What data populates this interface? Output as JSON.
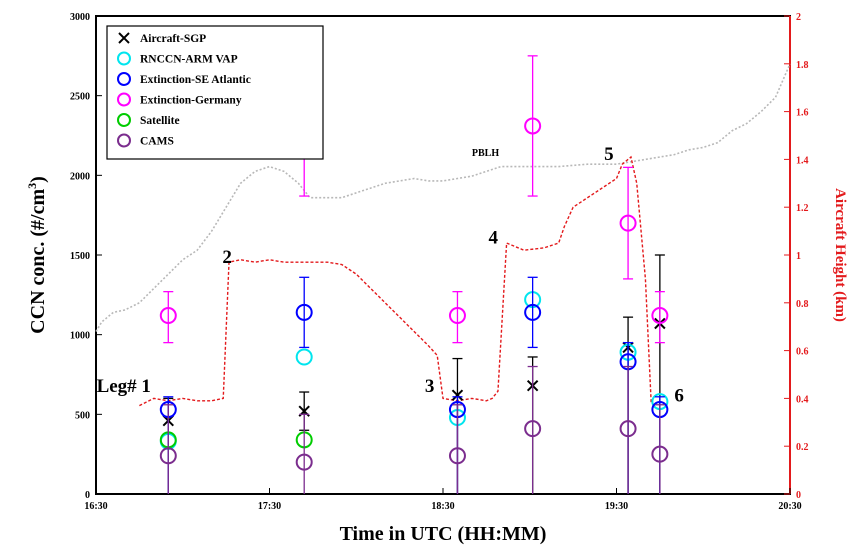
{
  "chart_data": {
    "type": "scatter",
    "xlabel": "Time in UTC (HH:MM)",
    "ylabel": "CCN conc. (#/cm",
    "ylabel_sup": "3",
    "ylabel_close": ")",
    "y2label": "Aircraft Height (km)",
    "xlim_minutes": [
      990,
      1230
    ],
    "ylim": [
      0,
      3000
    ],
    "y2lim": [
      0,
      2
    ],
    "x_ticks": [
      {
        "t": 990,
        "label": "16:30"
      },
      {
        "t": 1050,
        "label": "17:30"
      },
      {
        "t": 1110,
        "label": "18:30"
      },
      {
        "t": 1170,
        "label": "19:30"
      },
      {
        "t": 1230,
        "label": "20:30"
      }
    ],
    "y_ticks": [
      0,
      500,
      1000,
      1500,
      2000,
      2500,
      3000
    ],
    "y2_ticks": [
      "0",
      "0.2",
      "0.4",
      "0.6",
      "0.8",
      "1",
      "1.2",
      "1.4",
      "1.6",
      "1.8",
      "2"
    ],
    "legend": {
      "position": "top-left",
      "entries": [
        {
          "name": "Aircraft-SGP",
          "marker": "x",
          "color": "#000000"
        },
        {
          "name": "RNCCN-ARM VAP",
          "marker": "o",
          "color": "#00e5ee"
        },
        {
          "name": "Extinction-SE Atlantic",
          "marker": "o",
          "color": "#0000ff"
        },
        {
          "name": "Extinction-Germany",
          "marker": "o",
          "color": "#ff00ff"
        },
        {
          "name": "Satellite",
          "marker": "o",
          "color": "#00cc00"
        },
        {
          "name": "CAMS",
          "marker": "o",
          "color": "#7b2d8e"
        }
      ]
    },
    "series": [
      {
        "name": "Aircraft-SGP",
        "marker": "x",
        "color": "#000000",
        "points": [
          {
            "x": 1015,
            "y": 460,
            "lo": 0,
            "hi": 600
          },
          {
            "x": 1062,
            "y": 520,
            "lo": 400,
            "hi": 640
          },
          {
            "x": 1115,
            "y": 620,
            "lo": 0,
            "hi": 850
          },
          {
            "x": 1141,
            "y": 680,
            "lo": 0,
            "hi": 860
          },
          {
            "x": 1174,
            "y": 920,
            "lo": 0,
            "hi": 1110
          },
          {
            "x": 1185,
            "y": 1070,
            "lo": 0,
            "hi": 1500
          }
        ]
      },
      {
        "name": "RNCCN-ARM VAP",
        "marker": "o",
        "color": "#00e5ee",
        "points": [
          {
            "x": 1015,
            "y": 330
          },
          {
            "x": 1062,
            "y": 860
          },
          {
            "x": 1115,
            "y": 480
          },
          {
            "x": 1141,
            "y": 1220
          },
          {
            "x": 1174,
            "y": 890
          },
          {
            "x": 1185,
            "y": 580
          }
        ]
      },
      {
        "name": "Extinction-SE Atlantic",
        "marker": "o",
        "color": "#0000ff",
        "points": [
          {
            "x": 1015,
            "y": 530,
            "lo": 0,
            "hi": 610
          },
          {
            "x": 1062,
            "y": 1140,
            "lo": 920,
            "hi": 1360
          },
          {
            "x": 1115,
            "y": 530,
            "lo": 0,
            "hi": 610
          },
          {
            "x": 1141,
            "y": 1140,
            "lo": 920,
            "hi": 1360
          },
          {
            "x": 1174,
            "y": 830,
            "lo": 0,
            "hi": 950
          },
          {
            "x": 1185,
            "y": 530,
            "lo": 0,
            "hi": 610
          }
        ]
      },
      {
        "name": "Extinction-Germany",
        "marker": "o",
        "color": "#ff00ff",
        "points": [
          {
            "x": 1015,
            "y": 1120,
            "lo": 950,
            "hi": 1270
          },
          {
            "x": 1062,
            "y": 2310,
            "lo": 1870,
            "hi": 2750
          },
          {
            "x": 1115,
            "y": 1120,
            "lo": 950,
            "hi": 1270
          },
          {
            "x": 1141,
            "y": 2310,
            "lo": 1870,
            "hi": 2750
          },
          {
            "x": 1174,
            "y": 1700,
            "lo": 1350,
            "hi": 2050
          },
          {
            "x": 1185,
            "y": 1120,
            "lo": 950,
            "hi": 1270
          }
        ]
      },
      {
        "name": "Satellite",
        "marker": "o",
        "color": "#00cc00",
        "points": [
          {
            "x": 1015,
            "y": 340
          },
          {
            "x": 1062,
            "y": 340
          }
        ]
      },
      {
        "name": "CAMS",
        "marker": "o",
        "color": "#7b2d8e",
        "points": [
          {
            "x": 1015,
            "y": 240,
            "lo": 0,
            "hi": 560
          },
          {
            "x": 1062,
            "y": 200,
            "lo": 0,
            "hi": 500
          },
          {
            "x": 1115,
            "y": 240,
            "lo": 0,
            "hi": 560
          },
          {
            "x": 1141,
            "y": 410,
            "lo": 0,
            "hi": 800
          },
          {
            "x": 1174,
            "y": 410,
            "lo": 0,
            "hi": 800
          },
          {
            "x": 1185,
            "y": 250,
            "lo": 0,
            "hi": 560
          }
        ]
      }
    ],
    "aircraft_height": {
      "color": "#e31a1c",
      "x": [
        1005,
        1010,
        1015,
        1020,
        1025,
        1030,
        1034,
        1036,
        1040,
        1045,
        1050,
        1055,
        1060,
        1065,
        1070,
        1075,
        1080,
        1085,
        1090,
        1095,
        1100,
        1105,
        1108,
        1110,
        1115,
        1120,
        1125,
        1127,
        1129,
        1132,
        1138,
        1145,
        1150,
        1152,
        1155,
        1160,
        1165,
        1170,
        1172,
        1175,
        1177,
        1180,
        1182
      ],
      "y": [
        0.37,
        0.4,
        0.39,
        0.4,
        0.39,
        0.39,
        0.4,
        0.97,
        0.98,
        0.97,
        0.98,
        0.97,
        0.97,
        0.97,
        0.97,
        0.96,
        0.92,
        0.86,
        0.8,
        0.74,
        0.68,
        0.62,
        0.58,
        0.4,
        0.39,
        0.4,
        0.39,
        0.4,
        0.43,
        1.05,
        1.02,
        1.03,
        1.05,
        1.12,
        1.2,
        1.24,
        1.28,
        1.32,
        1.38,
        1.41,
        1.3,
        0.9,
        0.38
      ]
    },
    "pblh": {
      "label": "PBLH",
      "color": "#b8b8b8",
      "x": [
        990,
        992,
        996,
        1000,
        1005,
        1010,
        1015,
        1020,
        1025,
        1030,
        1035,
        1040,
        1045,
        1050,
        1055,
        1060,
        1064,
        1070,
        1075,
        1080,
        1085,
        1090,
        1095,
        1100,
        1105,
        1110,
        1115,
        1120,
        1130,
        1140,
        1150,
        1160,
        1170,
        1180,
        1190,
        1195,
        1200,
        1205,
        1210,
        1215,
        1220,
        1225,
        1230
      ],
      "y": [
        0.68,
        0.72,
        0.76,
        0.77,
        0.8,
        0.86,
        0.92,
        0.98,
        1.02,
        1.1,
        1.2,
        1.3,
        1.35,
        1.37,
        1.35,
        1.3,
        1.24,
        1.24,
        1.24,
        1.26,
        1.28,
        1.3,
        1.31,
        1.32,
        1.31,
        1.31,
        1.32,
        1.33,
        1.37,
        1.37,
        1.37,
        1.38,
        1.38,
        1.4,
        1.42,
        1.44,
        1.45,
        1.47,
        1.52,
        1.55,
        1.6,
        1.66,
        1.8
      ]
    },
    "leg_labels": [
      {
        "text": "Leg# 1",
        "x": 1009,
        "h": 0.44
      },
      {
        "text": "2",
        "x": 1037,
        "h": 0.98
      },
      {
        "text": "3",
        "x": 1107,
        "h": 0.44
      },
      {
        "text": "4",
        "x": 1129,
        "h": 1.06
      },
      {
        "text": "5",
        "x": 1169,
        "h": 1.41
      },
      {
        "text": "6",
        "x": 1190,
        "h": 0.4
      }
    ]
  }
}
